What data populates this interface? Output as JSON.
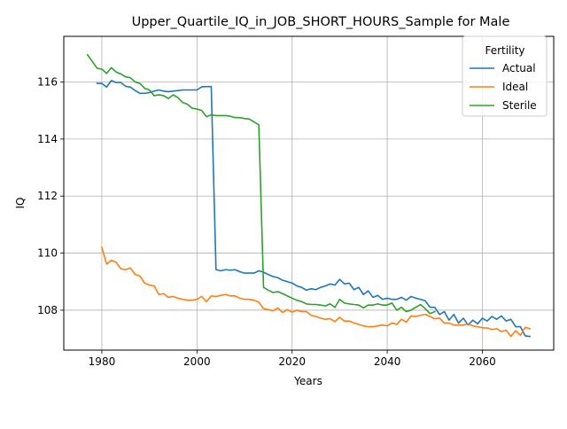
{
  "chart_data": {
    "type": "line",
    "title": "Upper_Quartile_IQ_in_JOB_SHORT_HOURS_Sample for Male",
    "xlabel": "Years",
    "ylabel": "IQ",
    "xlim": [
      1972,
      2075
    ],
    "ylim": [
      106.6,
      117.6
    ],
    "xticks": [
      1980,
      2000,
      2020,
      2040,
      2060
    ],
    "yticks": [
      108,
      110,
      112,
      114,
      116
    ],
    "grid": true,
    "legend": {
      "title": "Fertility",
      "position": "top-right"
    },
    "series": [
      {
        "name": "Actual",
        "color": "#1f77b4",
        "x": [
          1979,
          1980,
          1981,
          1982,
          1983,
          1984,
          1985,
          1986,
          1987,
          1988,
          1989,
          1990,
          1991,
          1992,
          1993,
          1994,
          1995,
          1996,
          1997,
          1998,
          1999,
          2000,
          2001,
          2002,
          2003,
          2004,
          2005,
          2006,
          2007,
          2008,
          2009,
          2010,
          2011,
          2012,
          2013,
          2014,
          2015,
          2016,
          2017,
          2018,
          2019,
          2020,
          2021,
          2022,
          2023,
          2024,
          2025,
          2026,
          2027,
          2028,
          2029,
          2030,
          2031,
          2032,
          2033,
          2034,
          2035,
          2036,
          2037,
          2038,
          2039,
          2040,
          2041,
          2042,
          2043,
          2044,
          2045,
          2046,
          2047,
          2048,
          2049,
          2050,
          2051,
          2052,
          2053,
          2054,
          2055,
          2056,
          2057,
          2058,
          2059,
          2060,
          2061,
          2062,
          2063,
          2064,
          2065,
          2066,
          2067,
          2068,
          2069,
          2070
        ],
        "y": [
          115.95,
          115.95,
          115.82,
          116.05,
          115.98,
          115.98,
          115.85,
          115.82,
          115.7,
          115.6,
          115.6,
          115.63,
          115.68,
          115.72,
          115.68,
          115.66,
          115.68,
          115.7,
          115.72,
          115.72,
          115.72,
          115.72,
          115.83,
          115.84,
          115.84,
          109.42,
          109.38,
          109.42,
          109.4,
          109.42,
          109.35,
          109.3,
          109.3,
          109.3,
          109.38,
          109.33,
          109.25,
          109.18,
          109.14,
          109.05,
          109.0,
          108.95,
          108.85,
          108.8,
          108.7,
          108.75,
          108.72,
          108.8,
          108.85,
          108.92,
          108.88,
          109.08,
          108.92,
          108.95,
          108.72,
          108.8,
          108.55,
          108.68,
          108.45,
          108.52,
          108.38,
          108.42,
          108.38,
          108.38,
          108.45,
          108.35,
          108.48,
          108.42,
          108.38,
          108.33,
          108.1,
          108.1,
          107.85,
          107.95,
          107.65,
          107.85,
          107.55,
          107.72,
          107.48,
          107.65,
          107.52,
          107.72,
          107.62,
          107.78,
          107.68,
          107.8,
          107.62,
          107.68,
          107.42,
          107.42,
          107.1,
          107.08
        ]
      },
      {
        "name": "Ideal",
        "color": "#ff7f0e",
        "x": [
          1980,
          1981,
          1982,
          1983,
          1984,
          1985,
          1986,
          1987,
          1988,
          1989,
          1990,
          1991,
          1992,
          1993,
          1994,
          1995,
          1996,
          1997,
          1998,
          1999,
          2000,
          2001,
          2002,
          2003,
          2004,
          2005,
          2006,
          2007,
          2008,
          2009,
          2010,
          2011,
          2012,
          2013,
          2014,
          2015,
          2016,
          2017,
          2018,
          2019,
          2020,
          2021,
          2022,
          2023,
          2024,
          2025,
          2026,
          2027,
          2028,
          2029,
          2030,
          2031,
          2032,
          2033,
          2034,
          2035,
          2036,
          2037,
          2038,
          2039,
          2040,
          2041,
          2042,
          2043,
          2044,
          2045,
          2046,
          2047,
          2048,
          2049,
          2050,
          2051,
          2052,
          2053,
          2054,
          2055,
          2056,
          2057,
          2058,
          2059,
          2060,
          2061,
          2062,
          2063,
          2064,
          2065,
          2066,
          2067,
          2068,
          2069,
          2070
        ],
        "y": [
          110.2,
          109.62,
          109.75,
          109.68,
          109.45,
          109.42,
          109.48,
          109.25,
          109.2,
          108.95,
          108.88,
          108.85,
          108.55,
          108.58,
          108.45,
          108.48,
          108.42,
          108.38,
          108.35,
          108.35,
          108.38,
          108.48,
          108.3,
          108.5,
          108.48,
          108.52,
          108.55,
          108.5,
          108.5,
          108.42,
          108.38,
          108.38,
          108.35,
          108.28,
          108.05,
          108.02,
          107.98,
          108.08,
          107.92,
          108.02,
          107.93,
          108.0,
          107.95,
          107.95,
          107.82,
          107.78,
          107.72,
          107.68,
          107.7,
          107.6,
          107.75,
          107.62,
          107.62,
          107.55,
          107.5,
          107.45,
          107.42,
          107.42,
          107.45,
          107.48,
          107.45,
          107.55,
          107.5,
          107.68,
          107.58,
          107.8,
          107.78,
          107.82,
          107.85,
          107.78,
          107.7,
          107.72,
          107.55,
          107.55,
          107.48,
          107.48,
          107.48,
          107.52,
          107.45,
          107.42,
          107.38,
          107.38,
          107.32,
          107.35,
          107.25,
          107.3,
          107.08,
          107.28,
          107.12,
          107.4,
          107.35
        ]
      },
      {
        "name": "Sterile",
        "color": "#2ca02c",
        "x": [
          1977,
          1978,
          1979,
          1980,
          1981,
          1982,
          1983,
          1984,
          1985,
          1986,
          1987,
          1988,
          1989,
          1990,
          1991,
          1992,
          1993,
          1994,
          1995,
          1996,
          1997,
          1998,
          1999,
          2000,
          2001,
          2002,
          2003,
          2004,
          2005,
          2006,
          2007,
          2008,
          2009,
          2010,
          2011,
          2012,
          2013,
          2014,
          2015,
          2016,
          2017,
          2018,
          2019,
          2020,
          2021,
          2022,
          2023,
          2024,
          2025,
          2026,
          2027,
          2028,
          2029,
          2030,
          2031,
          2032,
          2033,
          2034,
          2035,
          2036,
          2037,
          2038,
          2039,
          2040,
          2041,
          2042,
          2043,
          2044,
          2045,
          2046,
          2047,
          2048,
          2049,
          2050
        ],
        "y": [
          116.95,
          116.72,
          116.48,
          116.45,
          116.3,
          116.5,
          116.35,
          116.28,
          116.18,
          116.15,
          116.0,
          115.95,
          115.78,
          115.72,
          115.52,
          115.55,
          115.52,
          115.42,
          115.55,
          115.45,
          115.28,
          115.22,
          115.08,
          115.05,
          115.0,
          114.78,
          114.85,
          114.82,
          114.82,
          114.82,
          114.8,
          114.75,
          114.75,
          114.72,
          114.7,
          114.6,
          114.5,
          108.8,
          108.7,
          108.62,
          108.65,
          108.58,
          108.5,
          108.42,
          108.35,
          108.3,
          108.22,
          108.2,
          108.2,
          108.18,
          108.15,
          108.22,
          108.1,
          108.38,
          108.25,
          108.22,
          108.2,
          108.18,
          108.08,
          108.18,
          108.18,
          108.22,
          108.18,
          108.18,
          108.25,
          108.0,
          108.1,
          107.95,
          108.0,
          108.1,
          108.2,
          108.05,
          107.88,
          107.95
        ]
      }
    ]
  }
}
